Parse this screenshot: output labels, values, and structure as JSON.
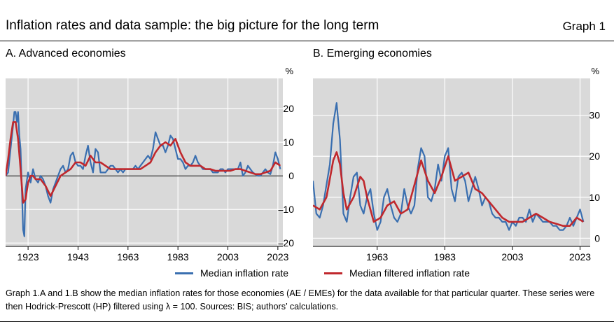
{
  "header": {
    "title": "Inflation rates and data sample: the big picture for the long term",
    "graph_number": "Graph 1"
  },
  "legend": {
    "median_label": "Median inflation rate",
    "filtered_label": "Median filtered inflation rate"
  },
  "colors": {
    "median": "#3a6fb0",
    "filtered": "#c0282d",
    "plot_bg": "#d9d9d9",
    "grid": "#ffffff"
  },
  "footnote": "Graph 1.A and 1.B show the median inflation rates for those economies (AE / EMEs) for the data available for that particular quarter. These series were then Hodrick-Prescott (HP) filtered using λ = 100. Sources: BIS; authors’ calculations.",
  "chart_data": [
    {
      "type": "line",
      "title": "A. Advanced economies",
      "unit": "%",
      "xlim": [
        1914,
        2025
      ],
      "ylim": [
        -21,
        29
      ],
      "xticks": [
        1923,
        1943,
        1963,
        1983,
        2003,
        2023
      ],
      "yticks": [
        -20,
        -10,
        0,
        10,
        20
      ],
      "ytick_labels": [
        "–20",
        "–10",
        "0",
        "10",
        "20"
      ],
      "zero_line": true,
      "grid": true,
      "series": [
        {
          "name": "Median inflation rate",
          "x": [
            1914,
            1915,
            1916,
            1917,
            1917.5,
            1918,
            1918.5,
            1919,
            1919.5,
            1920,
            1920.5,
            1921,
            1921.5,
            1922,
            1923,
            1924,
            1925,
            1926,
            1927,
            1928,
            1929,
            1930,
            1931,
            1932,
            1933,
            1934,
            1935,
            1936,
            1937,
            1938,
            1939,
            1940,
            1941,
            1942,
            1943,
            1944,
            1945,
            1946,
            1947,
            1948,
            1949,
            1950,
            1951,
            1952,
            1953,
            1954,
            1955,
            1956,
            1957,
            1958,
            1959,
            1960,
            1961,
            1962,
            1963,
            1964,
            1965,
            1966,
            1967,
            1968,
            1969,
            1970,
            1971,
            1972,
            1973,
            1974,
            1975,
            1976,
            1977,
            1978,
            1979,
            1980,
            1981,
            1982,
            1983,
            1984,
            1985,
            1986,
            1987,
            1988,
            1989,
            1990,
            1991,
            1992,
            1993,
            1994,
            1995,
            1996,
            1997,
            1998,
            1999,
            2000,
            2001,
            2002,
            2003,
            2004,
            2005,
            2006,
            2007,
            2008,
            2009,
            2010,
            2011,
            2012,
            2013,
            2014,
            2015,
            2016,
            2017,
            2018,
            2019,
            2020,
            2021,
            2022,
            2023,
            2024
          ],
          "y": [
            0,
            1,
            8,
            15,
            19,
            19,
            16,
            19,
            12,
            8,
            -4,
            -16,
            -18,
            -4,
            1,
            -2,
            2,
            -1,
            -2,
            0,
            -1,
            -3,
            -6,
            -8,
            -4,
            -2,
            0,
            2,
            3,
            1,
            2,
            6,
            7,
            4,
            3,
            3,
            2,
            6,
            9,
            4,
            1,
            8,
            7,
            1,
            1,
            1,
            2,
            3,
            3,
            2,
            1,
            2,
            1,
            2,
            2,
            2,
            2,
            3,
            2,
            3,
            4,
            5,
            6,
            5,
            8,
            13,
            11,
            9,
            9,
            7,
            9,
            12,
            11,
            8,
            5,
            5,
            4,
            2,
            3,
            3,
            4,
            6,
            4,
            3,
            2,
            2,
            2,
            2,
            1,
            1,
            1,
            2,
            2,
            1,
            2,
            2,
            2,
            2,
            2,
            4,
            0,
            1,
            3,
            2,
            1,
            0.5,
            0,
            0,
            1,
            2,
            1,
            0.5,
            3,
            7,
            5,
            2
          ]
        },
        {
          "name": "Median filtered inflation rate",
          "x": [
            1914,
            1915,
            1916,
            1917,
            1918,
            1919,
            1920,
            1921,
            1922,
            1923,
            1924,
            1925,
            1926,
            1928,
            1930,
            1932,
            1934,
            1936,
            1938,
            1940,
            1942,
            1944,
            1946,
            1948,
            1950,
            1952,
            1954,
            1956,
            1958,
            1960,
            1962,
            1964,
            1966,
            1968,
            1970,
            1972,
            1974,
            1976,
            1978,
            1980,
            1982,
            1984,
            1986,
            1988,
            1990,
            1992,
            1994,
            1996,
            1998,
            2000,
            2002,
            2004,
            2006,
            2008,
            2010,
            2012,
            2014,
            2016,
            2018,
            2020,
            2022,
            2024
          ],
          "y": [
            0,
            5,
            11,
            16,
            16,
            11,
            2,
            -8,
            -7,
            -2,
            0,
            0,
            -1,
            -1,
            -3,
            -6,
            -3,
            0,
            1,
            2,
            4,
            4,
            3,
            6,
            4,
            4,
            3,
            2,
            2,
            2,
            2,
            2,
            2,
            2,
            3,
            4,
            7,
            9,
            10,
            9,
            11,
            7,
            4,
            3,
            3,
            3,
            2,
            2,
            1.5,
            1.5,
            1.5,
            1.5,
            2,
            2,
            1.5,
            1,
            0.5,
            0.5,
            1,
            1.5,
            4,
            3
          ]
        }
      ]
    },
    {
      "type": "line",
      "title": "B. Emerging economies",
      "unit": "%",
      "xlim": [
        1944,
        2026
      ],
      "ylim": [
        -2,
        39
      ],
      "xticks": [
        1963,
        1983,
        2003,
        2023
      ],
      "yticks": [
        0,
        10,
        20,
        30
      ],
      "ytick_labels": [
        "0",
        "10",
        "20",
        "30"
      ],
      "zero_line": false,
      "grid": true,
      "series": [
        {
          "name": "Median inflation rate",
          "x": [
            1944,
            1945,
            1946,
            1947,
            1948,
            1949,
            1950,
            1951,
            1952,
            1953,
            1954,
            1955,
            1956,
            1957,
            1958,
            1959,
            1960,
            1961,
            1962,
            1963,
            1964,
            1965,
            1966,
            1967,
            1968,
            1969,
            1970,
            1971,
            1972,
            1973,
            1974,
            1975,
            1976,
            1977,
            1978,
            1979,
            1980,
            1981,
            1982,
            1983,
            1984,
            1985,
            1986,
            1987,
            1988,
            1989,
            1990,
            1991,
            1992,
            1993,
            1994,
            1995,
            1996,
            1997,
            1998,
            1999,
            2000,
            2001,
            2002,
            2003,
            2004,
            2005,
            2006,
            2007,
            2008,
            2009,
            2010,
            2011,
            2012,
            2013,
            2014,
            2015,
            2016,
            2017,
            2018,
            2019,
            2020,
            2021,
            2022,
            2023,
            2024
          ],
          "y": [
            14,
            6,
            5,
            8,
            13,
            18,
            28,
            33,
            24,
            6,
            4,
            10,
            15,
            16,
            8,
            6,
            10,
            12,
            6,
            2,
            4,
            10,
            12,
            8,
            5,
            4,
            6,
            12,
            8,
            6,
            8,
            17,
            22,
            20,
            10,
            9,
            12,
            18,
            14,
            20,
            22,
            12,
            9,
            15,
            16,
            14,
            9,
            12,
            15,
            12,
            8,
            10,
            9,
            6,
            5,
            5,
            4,
            4,
            2,
            4,
            3,
            5,
            5,
            4,
            7,
            4,
            6,
            5,
            4,
            4,
            4,
            3,
            3,
            2,
            2,
            3,
            5,
            3,
            5,
            7,
            4
          ]
        },
        {
          "name": "Median filtered inflation rate",
          "x": [
            1944,
            1946,
            1948,
            1950,
            1951,
            1952,
            1953,
            1954,
            1956,
            1958,
            1959,
            1960,
            1962,
            1964,
            1966,
            1968,
            1970,
            1972,
            1974,
            1976,
            1978,
            1980,
            1982,
            1984,
            1986,
            1988,
            1990,
            1992,
            1994,
            1996,
            1998,
            2000,
            2002,
            2004,
            2006,
            2008,
            2010,
            2012,
            2014,
            2016,
            2018,
            2020,
            2022,
            2024
          ],
          "y": [
            8,
            7,
            10,
            19,
            21,
            18,
            11,
            7,
            10,
            15,
            14,
            10,
            4,
            5,
            8,
            9,
            6,
            7,
            13,
            19,
            14,
            11,
            15,
            20,
            14,
            15,
            16,
            12,
            11,
            9,
            7,
            5,
            4,
            4,
            4,
            5,
            6,
            5,
            4,
            3.5,
            3,
            3,
            5,
            4
          ]
        }
      ]
    }
  ]
}
